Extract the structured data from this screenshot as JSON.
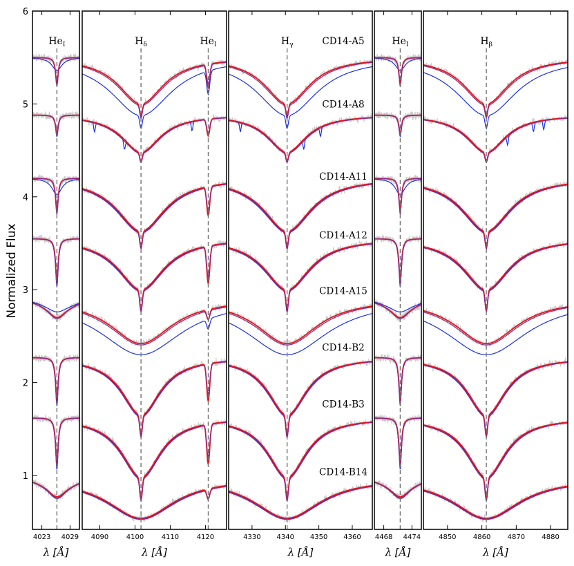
{
  "chart_data": {
    "type": "line",
    "ylabel": "Normalized Flux",
    "ylim": [
      0.42,
      6.0
    ],
    "yticks": [
      "1",
      "2",
      "3",
      "4",
      "5",
      "6"
    ],
    "colors": {
      "observed": "#c8c8c8",
      "model_red": "#e8141a",
      "model_blue": "#1a2ee8",
      "model_purple": "#8b2a8b",
      "marker": "#707070"
    },
    "panels": [
      {
        "name": "HeI-4026",
        "xlim": [
          4021,
          4031
        ],
        "xticks": [
          "4023",
          "4029"
        ],
        "xtick_values": [
          4023,
          4029
        ],
        "center": 4026.2,
        "marker_label": "He",
        "marker_sub": "I",
        "xlabel": "λ [Å]"
      },
      {
        "name": "Hdelta-HeI-4121",
        "xlim": [
          4085,
          4126
        ],
        "xticks": [
          "4090",
          "4100",
          "4110",
          "4120"
        ],
        "xtick_values": [
          4090,
          4100,
          4110,
          4120
        ],
        "center": 4101.7,
        "center2": 4120.8,
        "marker_label": "H",
        "marker_sub": "δ",
        "marker2_label": "He",
        "marker2_sub": "I",
        "xlabel": "λ [Å]"
      },
      {
        "name": "Hgamma",
        "xlim": [
          4323,
          4366
        ],
        "xticks": [
          "4330",
          "4340",
          "4350",
          "4360"
        ],
        "xtick_values": [
          4330,
          4340,
          4350,
          4360
        ],
        "center": 4340.5,
        "marker_label": "H",
        "marker_sub": "γ",
        "xlabel": "λ [Å]"
      },
      {
        "name": "HeI-4471",
        "xlim": [
          4466,
          4476
        ],
        "xticks": [
          "4468",
          "4474"
        ],
        "xtick_values": [
          4468,
          4474
        ],
        "center": 4471.5,
        "marker_label": "He",
        "marker_sub": "I",
        "xlabel": "λ [Å]"
      },
      {
        "name": "Hbeta",
        "xlim": [
          4843,
          4885
        ],
        "xticks": [
          "4850",
          "4860",
          "4870",
          "4880"
        ],
        "xtick_values": [
          4850,
          4860,
          4870,
          4880
        ],
        "center": 4861.3,
        "marker_label": "H",
        "marker_sub": "β",
        "xlabel": "λ [Å]"
      }
    ],
    "stars": [
      {
        "name": "CD14-A5",
        "label_y": 5.68,
        "offset": 5.5,
        "hwidth": 0.19,
        "depth": 0.5,
        "he": 0.28,
        "blue_wide": true
      },
      {
        "name": "CD14-A8",
        "label_y": 5.0,
        "offset": 4.88,
        "hwidth": 0.16,
        "depth": 0.4,
        "he": 0.2,
        "blue_wide": false
      },
      {
        "name": "CD14-A11",
        "label_y": 4.22,
        "offset": 4.2,
        "hwidth": 0.2,
        "depth": 0.57,
        "he": 0.35,
        "blue_wide": false
      },
      {
        "name": "CD14-A12",
        "label_y": 3.59,
        "offset": 3.55,
        "hwidth": 0.19,
        "depth": 0.55,
        "he": 0.45,
        "blue_wide": false
      },
      {
        "name": "CD14-A15",
        "label_y": 2.99,
        "offset": 2.9,
        "hwidth": 0.26,
        "depth": 0.48,
        "he": 0.12,
        "blue_wide": true
      },
      {
        "name": "CD14-B2",
        "label_y": 2.38,
        "offset": 2.27,
        "hwidth": 0.16,
        "depth": 0.62,
        "he": 0.45,
        "blue_wide": false
      },
      {
        "name": "CD14-B3",
        "label_y": 1.77,
        "offset": 1.62,
        "hwidth": 0.16,
        "depth": 0.64,
        "he": 0.48,
        "blue_wide": false
      },
      {
        "name": "CD14-B14",
        "label_y": 1.04,
        "offset": 0.97,
        "hwidth": 0.28,
        "depth": 0.43,
        "he": 0.12,
        "blue_wide": false
      }
    ]
  }
}
